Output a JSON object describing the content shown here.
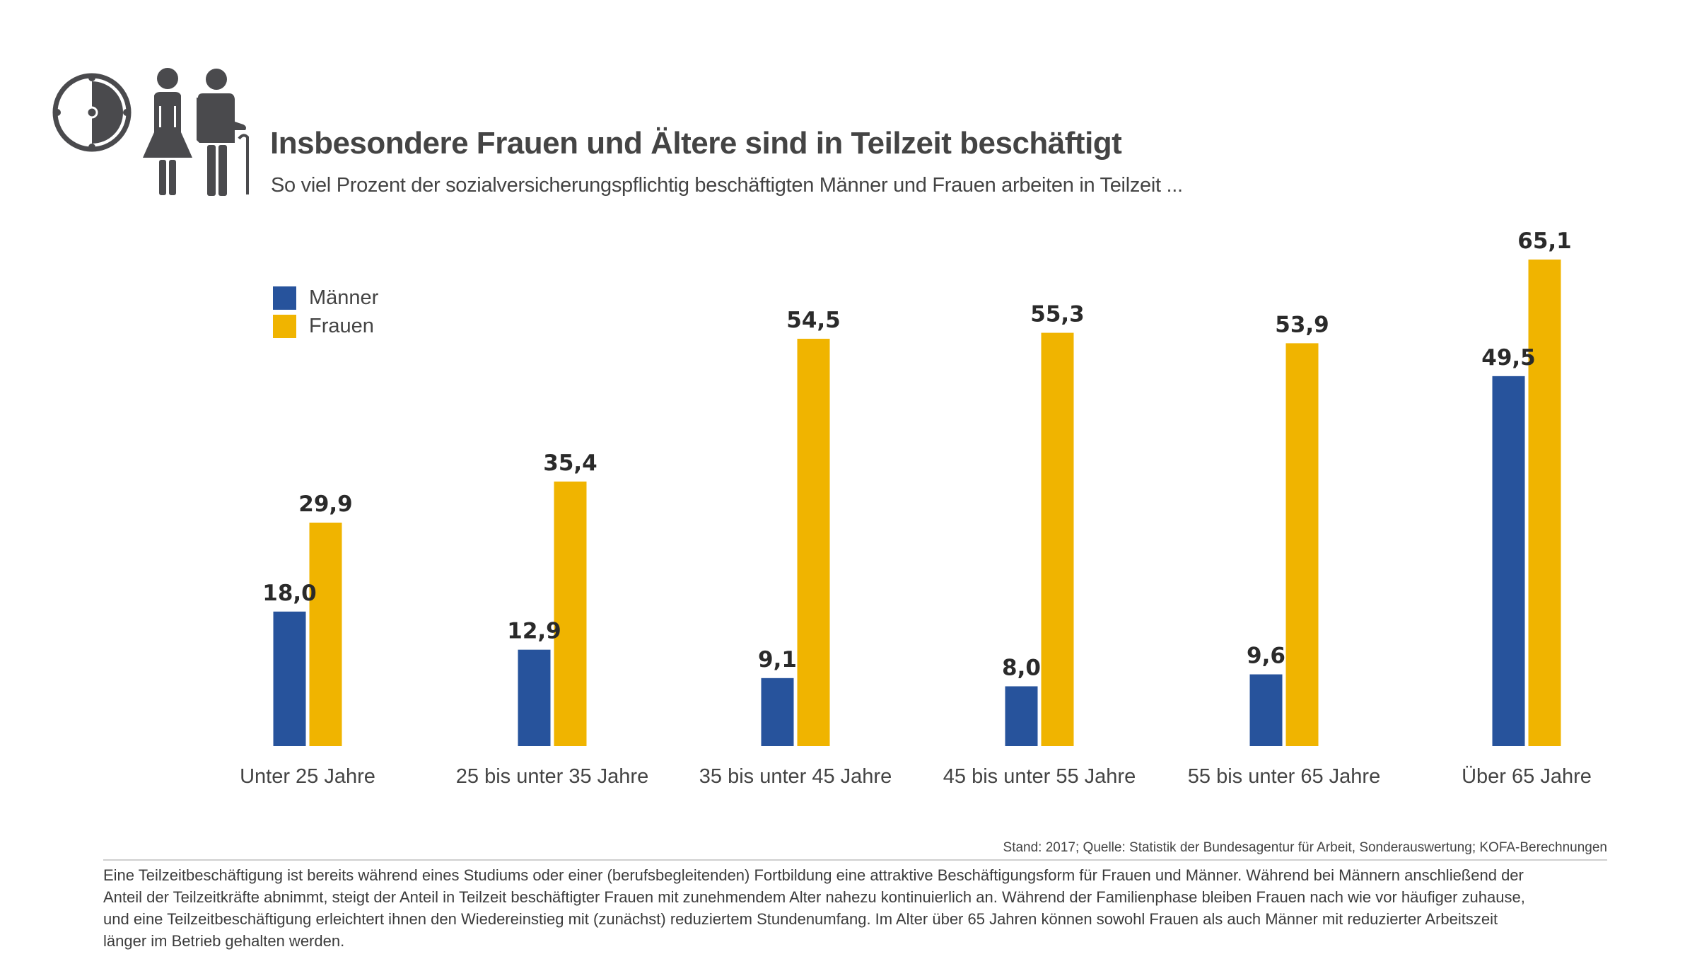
{
  "header": {
    "title": "Insbesondere Frauen und Ältere sind in Teilzeit beschäftigt",
    "subtitle": "So viel Prozent der sozialversicherungspflichtig beschäftigten Männer und Frauen arbeiten in Teilzeit ...",
    "icons": [
      "half-clock-icon",
      "woman-icon",
      "elderly-man-with-cane-icon"
    ]
  },
  "legend": [
    {
      "label": "Männer",
      "color": "#27539c"
    },
    {
      "label": "Frauen",
      "color": "#f0b400"
    }
  ],
  "chart_data": {
    "type": "bar",
    "title": "Insbesondere Frauen und Ältere sind in Teilzeit beschäftigt",
    "subtitle": "So viel Prozent der sozialversicherungspflichtig beschäftigten Männer und Frauen arbeiten in Teilzeit ...",
    "xlabel": "",
    "ylabel": "",
    "ylim": [
      0,
      65.1
    ],
    "grid": false,
    "legend_position": "top-left",
    "categories": [
      "Unter 25 Jahre",
      "25 bis unter 35 Jahre",
      "35 bis unter 45 Jahre",
      "45 bis unter 55 Jahre",
      "55 bis unter 65 Jahre",
      "Über 65 Jahre"
    ],
    "series": [
      {
        "name": "Männer",
        "color": "#27539c",
        "values": [
          18.0,
          12.9,
          9.1,
          8.0,
          9.6,
          49.5
        ],
        "labels": [
          "18,0",
          "12,9",
          "9,1",
          "8,0",
          "9,6",
          "49,5"
        ]
      },
      {
        "name": "Frauen",
        "color": "#f0b400",
        "values": [
          29.9,
          35.4,
          54.5,
          55.3,
          53.9,
          65.1
        ],
        "labels": [
          "29,9",
          "35,4",
          "54,5",
          "55,3",
          "53,9",
          "65,1"
        ]
      }
    ]
  },
  "footer": {
    "source": "Stand: 2017; Quelle: Statistik der Bundesagentur für Arbeit, Sonderauswertung; KOFA-Berechnungen",
    "body_lines": [
      "Eine Teilzeitbeschäftigung ist bereits während eines Studiums oder einer (berufsbegleitenden) Fortbildung eine attraktive Beschäftigungsform für Frauen und Männer. Während bei Männern anschließend der",
      "Anteil der Teilzeitkräfte abnimmt, steigt der Anteil in Teilzeit beschäftigter Frauen mit zunehmendem Alter nahezu kontinuierlich an. Während der Familienphase bleiben Frauen nach wie vor häufiger zuhause,",
      "und eine Teilzeitbeschäftigung erleichtert ihnen den Wiedereinstieg mit (zunächst) reduziertem Stundenumfang. Im Alter über 65 Jahren können sowohl Frauen als auch Männer mit reduzierter Arbeitszeit",
      "länger im Betrieb gehalten werden."
    ]
  }
}
